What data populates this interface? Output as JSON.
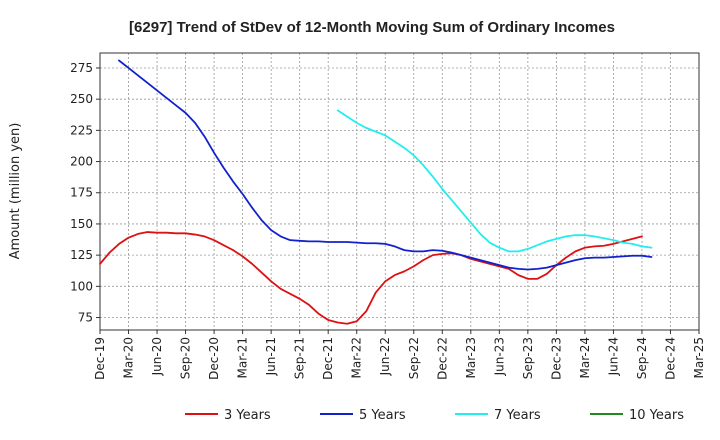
{
  "chart_data": {
    "type": "line",
    "title": "[6297]  Trend of StDev of 12-Month Moving Sum of Ordinary Incomes",
    "xlabel": "",
    "ylabel": "Amount (million yen)",
    "x_ticks": [
      "Dec-19",
      "Mar-20",
      "Jun-20",
      "Sep-20",
      "Dec-20",
      "Mar-21",
      "Jun-21",
      "Sep-21",
      "Dec-21",
      "Mar-22",
      "Jun-22",
      "Sep-22",
      "Dec-22",
      "Mar-23",
      "Jun-23",
      "Sep-23",
      "Dec-23",
      "Mar-24",
      "Jun-24",
      "Sep-24",
      "Dec-24",
      "Mar-25"
    ],
    "x_range": [
      0,
      63
    ],
    "ylim": [
      65,
      287
    ],
    "y_ticks": [
      75,
      100,
      125,
      150,
      175,
      200,
      225,
      250,
      275
    ],
    "grid": true,
    "legend_position": "bottom",
    "series": [
      {
        "name": "3 Years",
        "color": "#dd1111",
        "points": [
          [
            0,
            118
          ],
          [
            1,
            127
          ],
          [
            2,
            134
          ],
          [
            3,
            139
          ],
          [
            4,
            142
          ],
          [
            5,
            143.5
          ],
          [
            6,
            143
          ],
          [
            7,
            143
          ],
          [
            8,
            142.5
          ],
          [
            9,
            142.5
          ],
          [
            10,
            141.5
          ],
          [
            11,
            140
          ],
          [
            12,
            137
          ],
          [
            13,
            133
          ],
          [
            14,
            129
          ],
          [
            15,
            124
          ],
          [
            16,
            118
          ],
          [
            17,
            111
          ],
          [
            18,
            104
          ],
          [
            19,
            98
          ],
          [
            20,
            94
          ],
          [
            21,
            90
          ],
          [
            22,
            85
          ],
          [
            23,
            78
          ],
          [
            24,
            73
          ],
          [
            25,
            71
          ],
          [
            26,
            70
          ],
          [
            27,
            72
          ],
          [
            28,
            80
          ],
          [
            29,
            95
          ],
          [
            30,
            104
          ],
          [
            31,
            109
          ],
          [
            32,
            112
          ],
          [
            33,
            116
          ],
          [
            34,
            121
          ],
          [
            35,
            125
          ],
          [
            36,
            126
          ],
          [
            37,
            126.5
          ],
          [
            38,
            125
          ],
          [
            39,
            122
          ],
          [
            40,
            120
          ],
          [
            41,
            118
          ],
          [
            42,
            116
          ],
          [
            43,
            114
          ],
          [
            44,
            109
          ],
          [
            45,
            106
          ],
          [
            46,
            106
          ],
          [
            47,
            110
          ],
          [
            48,
            117
          ],
          [
            49,
            123
          ],
          [
            50,
            128
          ],
          [
            51,
            131
          ],
          [
            52,
            132
          ],
          [
            53,
            132.5
          ],
          [
            54,
            134
          ],
          [
            55,
            136
          ],
          [
            56,
            138
          ],
          [
            57,
            140
          ]
        ]
      },
      {
        "name": "5 Years",
        "color": "#1122cc",
        "points": [
          [
            2,
            281
          ],
          [
            3,
            275
          ],
          [
            4,
            269
          ],
          [
            5,
            263
          ],
          [
            6,
            257
          ],
          [
            7,
            251
          ],
          [
            8,
            245
          ],
          [
            9,
            239
          ],
          [
            10,
            231
          ],
          [
            11,
            220
          ],
          [
            12,
            207
          ],
          [
            13,
            195
          ],
          [
            14,
            184
          ],
          [
            15,
            174
          ],
          [
            16,
            163
          ],
          [
            17,
            153
          ],
          [
            18,
            145
          ],
          [
            19,
            140
          ],
          [
            20,
            137
          ],
          [
            21,
            136.5
          ],
          [
            22,
            136
          ],
          [
            23,
            136
          ],
          [
            24,
            135.5
          ],
          [
            25,
            135.5
          ],
          [
            26,
            135.5
          ],
          [
            27,
            135
          ],
          [
            28,
            134.5
          ],
          [
            29,
            134.5
          ],
          [
            30,
            134
          ],
          [
            31,
            132
          ],
          [
            32,
            129
          ],
          [
            33,
            128
          ],
          [
            34,
            128
          ],
          [
            35,
            129
          ],
          [
            36,
            128.5
          ],
          [
            37,
            127
          ],
          [
            38,
            125
          ],
          [
            39,
            123
          ],
          [
            40,
            121
          ],
          [
            41,
            119
          ],
          [
            42,
            117
          ],
          [
            43,
            115
          ],
          [
            44,
            114
          ],
          [
            45,
            113.5
          ],
          [
            46,
            114
          ],
          [
            47,
            115
          ],
          [
            48,
            117
          ],
          [
            49,
            119
          ],
          [
            50,
            121
          ],
          [
            51,
            122.5
          ],
          [
            52,
            123
          ],
          [
            53,
            123
          ],
          [
            54,
            123.5
          ],
          [
            55,
            124
          ],
          [
            56,
            124.5
          ],
          [
            57,
            124.5
          ],
          [
            58,
            123.5
          ]
        ]
      },
      {
        "name": "7 Years",
        "color": "#22eeee",
        "points": [
          [
            25,
            241
          ],
          [
            26,
            236
          ],
          [
            27,
            231
          ],
          [
            28,
            227
          ],
          [
            29,
            224
          ],
          [
            30,
            221
          ],
          [
            31,
            216
          ],
          [
            32,
            211
          ],
          [
            33,
            205
          ],
          [
            34,
            197
          ],
          [
            35,
            188
          ],
          [
            36,
            178
          ],
          [
            37,
            169
          ],
          [
            38,
            160
          ],
          [
            39,
            151
          ],
          [
            40,
            142
          ],
          [
            41,
            135
          ],
          [
            42,
            131
          ],
          [
            43,
            128
          ],
          [
            44,
            128
          ],
          [
            45,
            130
          ],
          [
            46,
            133
          ],
          [
            47,
            136
          ],
          [
            48,
            138
          ],
          [
            49,
            140
          ],
          [
            50,
            141
          ],
          [
            51,
            141
          ],
          [
            52,
            140
          ],
          [
            53,
            138.5
          ],
          [
            54,
            137
          ],
          [
            55,
            135
          ],
          [
            56,
            134
          ],
          [
            57,
            132
          ],
          [
            58,
            131
          ]
        ]
      },
      {
        "name": "10 Years",
        "color": "#228822",
        "points": []
      }
    ]
  }
}
